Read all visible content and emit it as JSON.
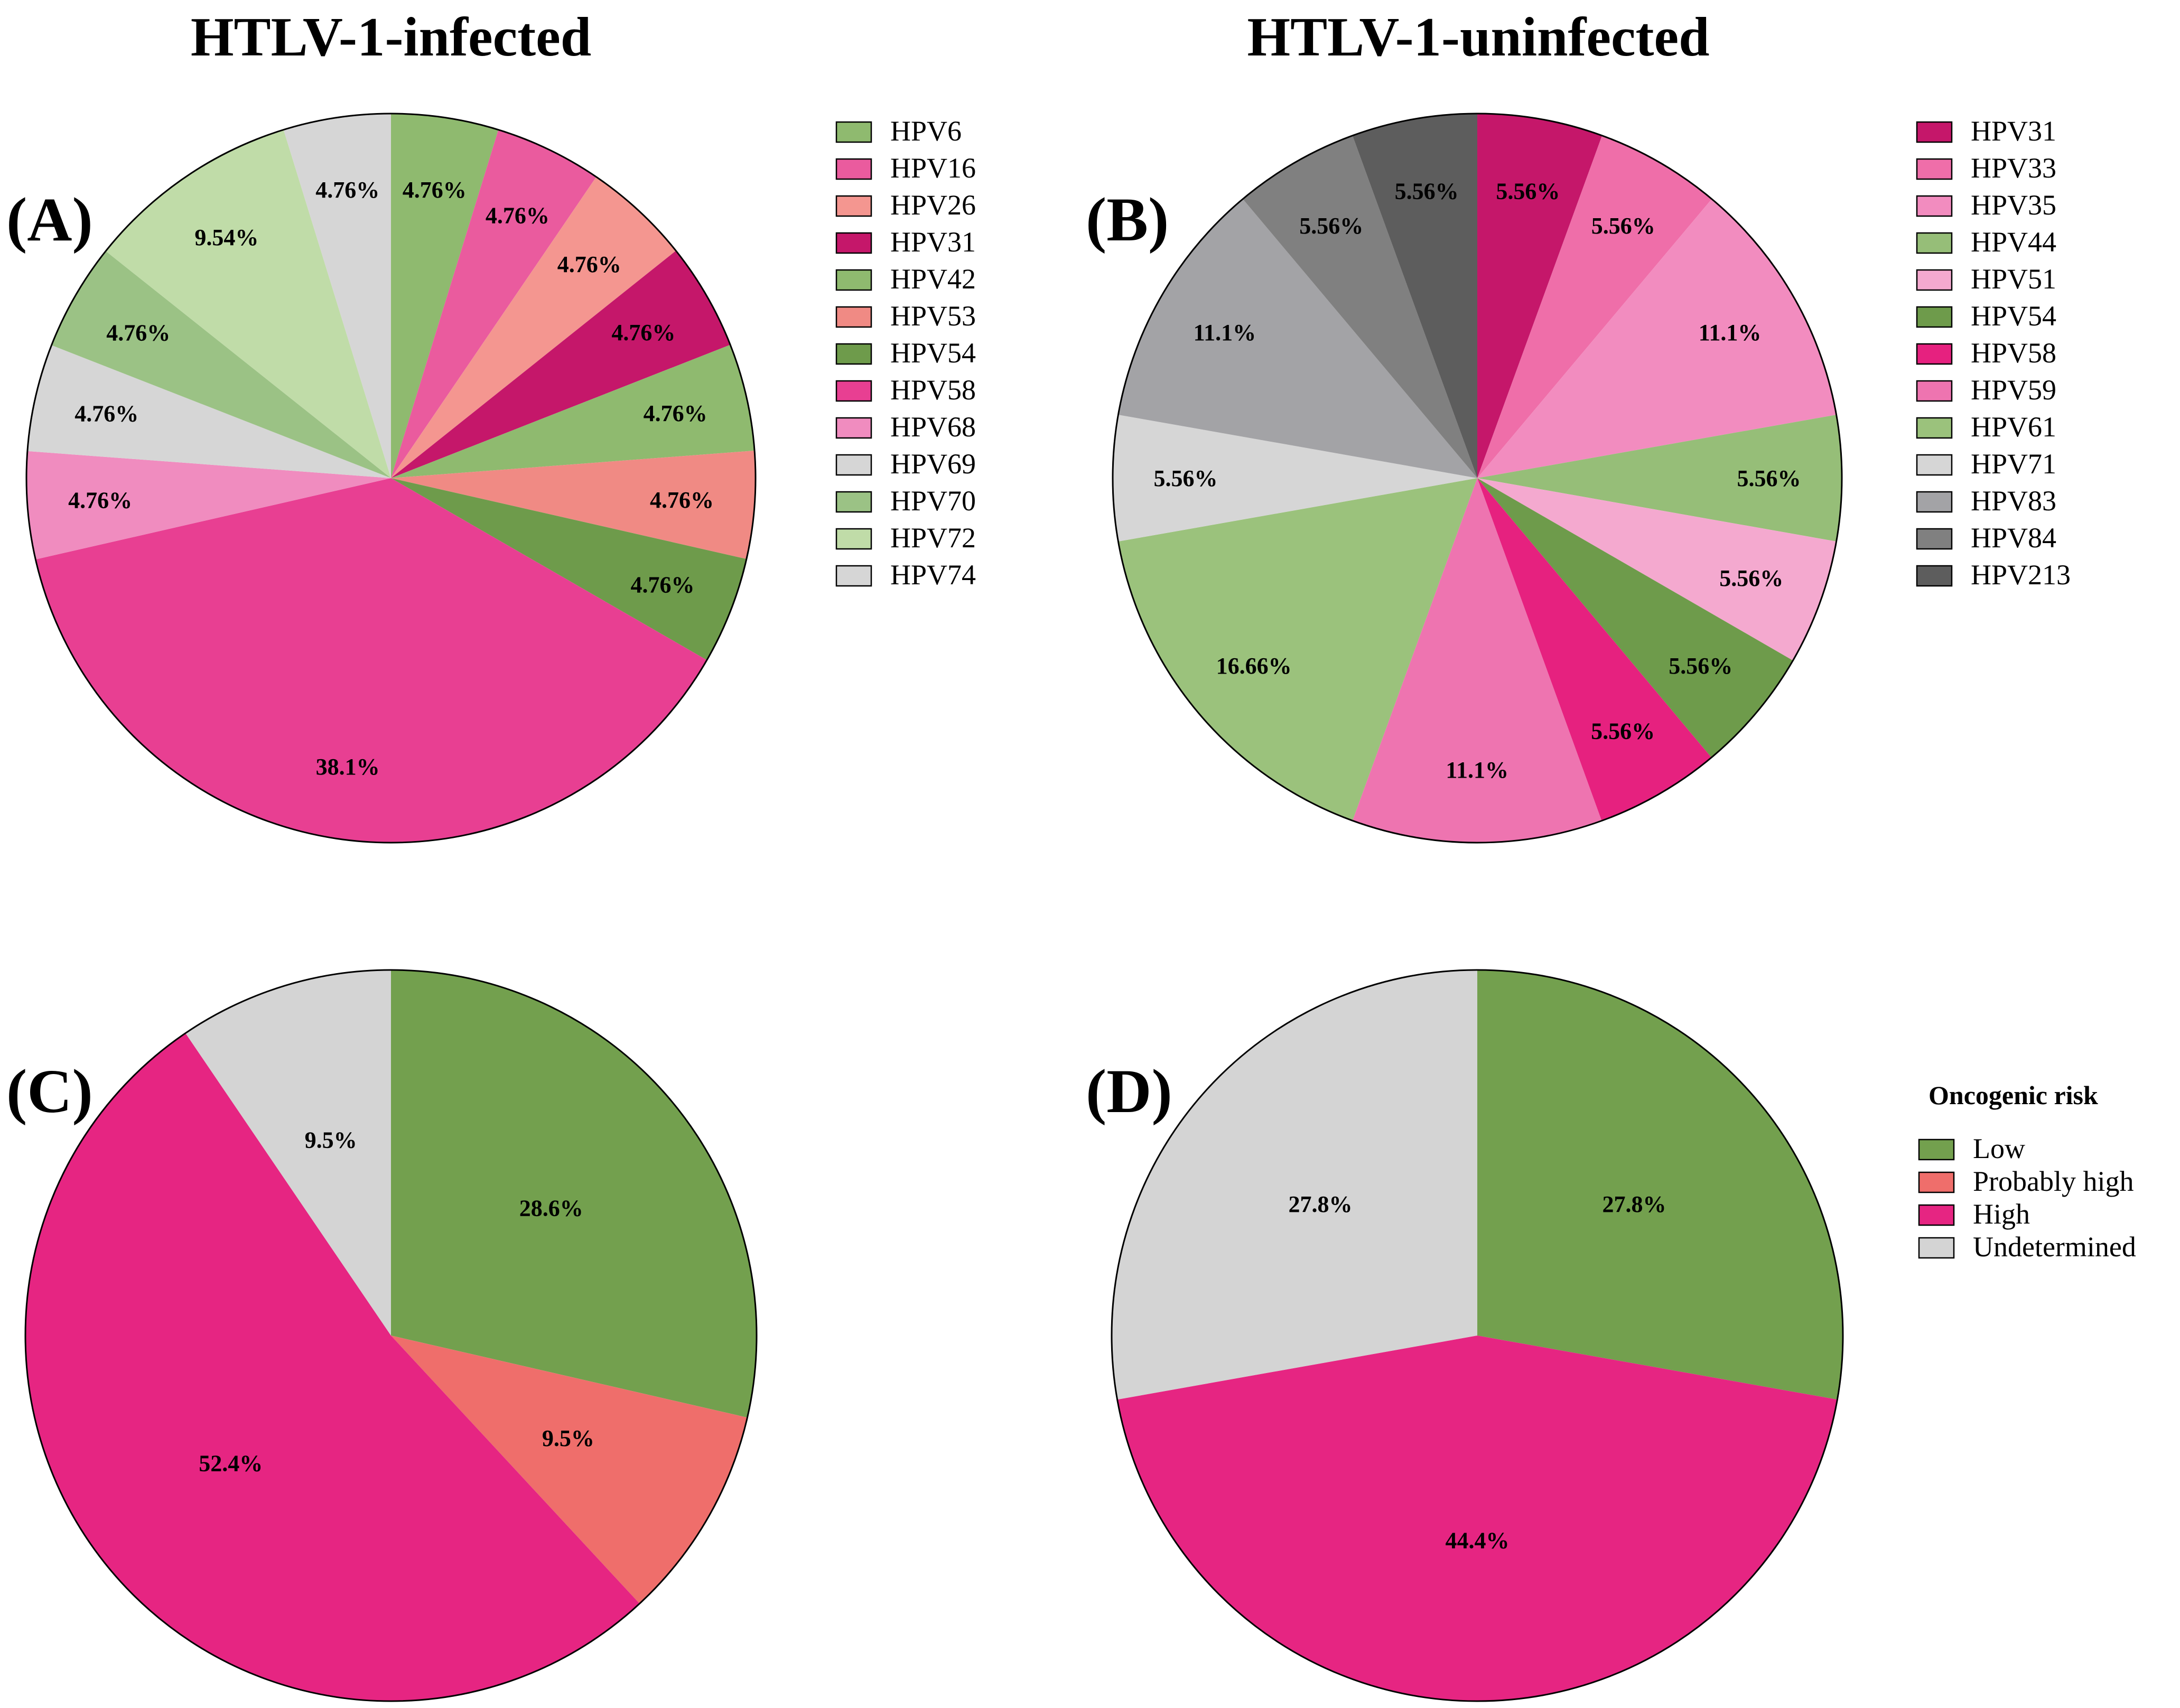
{
  "column_titles": [
    "HTLV-1-infected",
    "HTLV-1-uninfected"
  ],
  "chart_data": [
    {
      "type": "pie",
      "panel": "(A)",
      "title": "HTLV-1-infected",
      "slices": [
        {
          "name": "HPV6",
          "value": 4.76,
          "label": "4.76%",
          "color": "#8fba6f"
        },
        {
          "name": "HPV16",
          "value": 4.76,
          "label": "4.76%",
          "color": "#ea5b9e"
        },
        {
          "name": "HPV26",
          "value": 4.76,
          "label": "4.76%",
          "color": "#f49690"
        },
        {
          "name": "HPV31",
          "value": 4.76,
          "label": "4.76%",
          "color": "#c5176a"
        },
        {
          "name": "HPV42",
          "value": 4.76,
          "label": "4.76%",
          "color": "#8fba6f"
        },
        {
          "name": "HPV53",
          "value": 4.76,
          "label": "4.76%",
          "color": "#f08a84"
        },
        {
          "name": "HPV54",
          "value": 4.76,
          "label": "4.76%",
          "color": "#6e9b4b"
        },
        {
          "name": "HPV58",
          "value": 38.1,
          "label": "38.1%",
          "color": "#e83f92"
        },
        {
          "name": "HPV68",
          "value": 4.76,
          "label": "4.76%",
          "color": "#f08cbf"
        },
        {
          "name": "HPV69",
          "value": 4.76,
          "label": "4.76%",
          "color": "#d6d6d6"
        },
        {
          "name": "HPV70",
          "value": 4.76,
          "label": "4.76%",
          "color": "#9bc285"
        },
        {
          "name": "HPV72",
          "value": 9.54,
          "label": "9.54%",
          "color": "#c0dca8"
        },
        {
          "name": "HPV74",
          "value": 4.76,
          "label": "4.76%",
          "color": "#d6d6d6"
        }
      ]
    },
    {
      "type": "pie",
      "panel": "(B)",
      "title": "HTLV-1-uninfected",
      "slices": [
        {
          "name": "HPV31",
          "value": 5.56,
          "label": "5.56%",
          "color": "#c5176a"
        },
        {
          "name": "HPV33",
          "value": 5.56,
          "label": "5.56%",
          "color": "#ef6ea9"
        },
        {
          "name": "HPV35",
          "value": 11.1,
          "label": "11.1%",
          "color": "#f28cbf"
        },
        {
          "name": "HPV44",
          "value": 5.56,
          "label": "5.56%",
          "color": "#96be78"
        },
        {
          "name": "HPV51",
          "value": 5.56,
          "label": "5.56%",
          "color": "#f4a9cf"
        },
        {
          "name": "HPV54",
          "value": 5.56,
          "label": "5.56%",
          "color": "#6e9b4b"
        },
        {
          "name": "HPV58",
          "value": 5.56,
          "label": "5.56%",
          "color": "#e6217f"
        },
        {
          "name": "HPV59",
          "value": 11.1,
          "label": "11.1%",
          "color": "#ee74b0"
        },
        {
          "name": "HPV61",
          "value": 16.66,
          "label": "16.66%",
          "color": "#9bc27c"
        },
        {
          "name": "HPV71",
          "value": 5.56,
          "label": "5.56%",
          "color": "#d6d6d6"
        },
        {
          "name": "HPV83",
          "value": 11.1,
          "label": "11.1%",
          "color": "#a3a3a6"
        },
        {
          "name": "HPV84",
          "value": 5.56,
          "label": "5.56%",
          "color": "#808080"
        },
        {
          "name": "HPV213",
          "value": 5.56,
          "label": "5.56%",
          "color": "#5d5d5d"
        }
      ]
    },
    {
      "type": "pie",
      "panel": "(C)",
      "title": "HTLV-1-infected",
      "slices": [
        {
          "name": "Low",
          "value": 28.6,
          "label": "28.6%",
          "color": "#73a04e"
        },
        {
          "name": "Probably high",
          "value": 9.5,
          "label": "9.5%",
          "color": "#ef6e6b"
        },
        {
          "name": "High",
          "value": 52.4,
          "label": "52.4%",
          "color": "#e62582"
        },
        {
          "name": "Undetermined",
          "value": 9.5,
          "label": "9.5%",
          "color": "#d4d4d4"
        }
      ]
    },
    {
      "type": "pie",
      "panel": "(D)",
      "title": "HTLV-1-uninfected",
      "slices": [
        {
          "name": "Low",
          "value": 27.8,
          "label": "27.8%",
          "color": "#73a04e"
        },
        {
          "name": "High",
          "value": 44.4,
          "label": "44.4%",
          "color": "#e62582"
        },
        {
          "name": "Undetermined",
          "value": 27.8,
          "label": "27.8%",
          "color": "#d4d4d4"
        }
      ]
    }
  ],
  "legends": {
    "A": {
      "items": [
        {
          "label": "HPV6",
          "color": "#8fba6f"
        },
        {
          "label": "HPV16",
          "color": "#ea5b9e"
        },
        {
          "label": "HPV26",
          "color": "#f49690"
        },
        {
          "label": "HPV31",
          "color": "#c5176a"
        },
        {
          "label": "HPV42",
          "color": "#8fba6f"
        },
        {
          "label": "HPV53",
          "color": "#f08a84"
        },
        {
          "label": "HPV54",
          "color": "#6e9b4b"
        },
        {
          "label": "HPV58",
          "color": "#e83f92"
        },
        {
          "label": "HPV68",
          "color": "#f08cbf"
        },
        {
          "label": "HPV69",
          "color": "#d6d6d6"
        },
        {
          "label": "HPV70",
          "color": "#9bc285"
        },
        {
          "label": "HPV72",
          "color": "#c0dca8"
        },
        {
          "label": "HPV74",
          "color": "#d6d6d6"
        }
      ]
    },
    "B": {
      "items": [
        {
          "label": "HPV31",
          "color": "#c5176a"
        },
        {
          "label": "HPV33",
          "color": "#ef6ea9"
        },
        {
          "label": "HPV35",
          "color": "#f28cbf"
        },
        {
          "label": "HPV44",
          "color": "#96be78"
        },
        {
          "label": "HPV51",
          "color": "#f4a9cf"
        },
        {
          "label": "HPV54",
          "color": "#6e9b4b"
        },
        {
          "label": "HPV58",
          "color": "#e6217f"
        },
        {
          "label": "HPV59",
          "color": "#ee74b0"
        },
        {
          "label": "HPV61",
          "color": "#9bc27c"
        },
        {
          "label": "HPV71",
          "color": "#d6d6d6"
        },
        {
          "label": "HPV83",
          "color": "#a3a3a6"
        },
        {
          "label": "HPV84",
          "color": "#808080"
        },
        {
          "label": "HPV213",
          "color": "#5d5d5d"
        }
      ]
    },
    "risk": {
      "title": "Oncogenic risk",
      "items": [
        {
          "label": "Low",
          "color": "#73a04e"
        },
        {
          "label": "Probably high",
          "color": "#ef6e6b"
        },
        {
          "label": "High",
          "color": "#e62582"
        },
        {
          "label": "Undetermined",
          "color": "#d4d4d4"
        }
      ]
    }
  }
}
